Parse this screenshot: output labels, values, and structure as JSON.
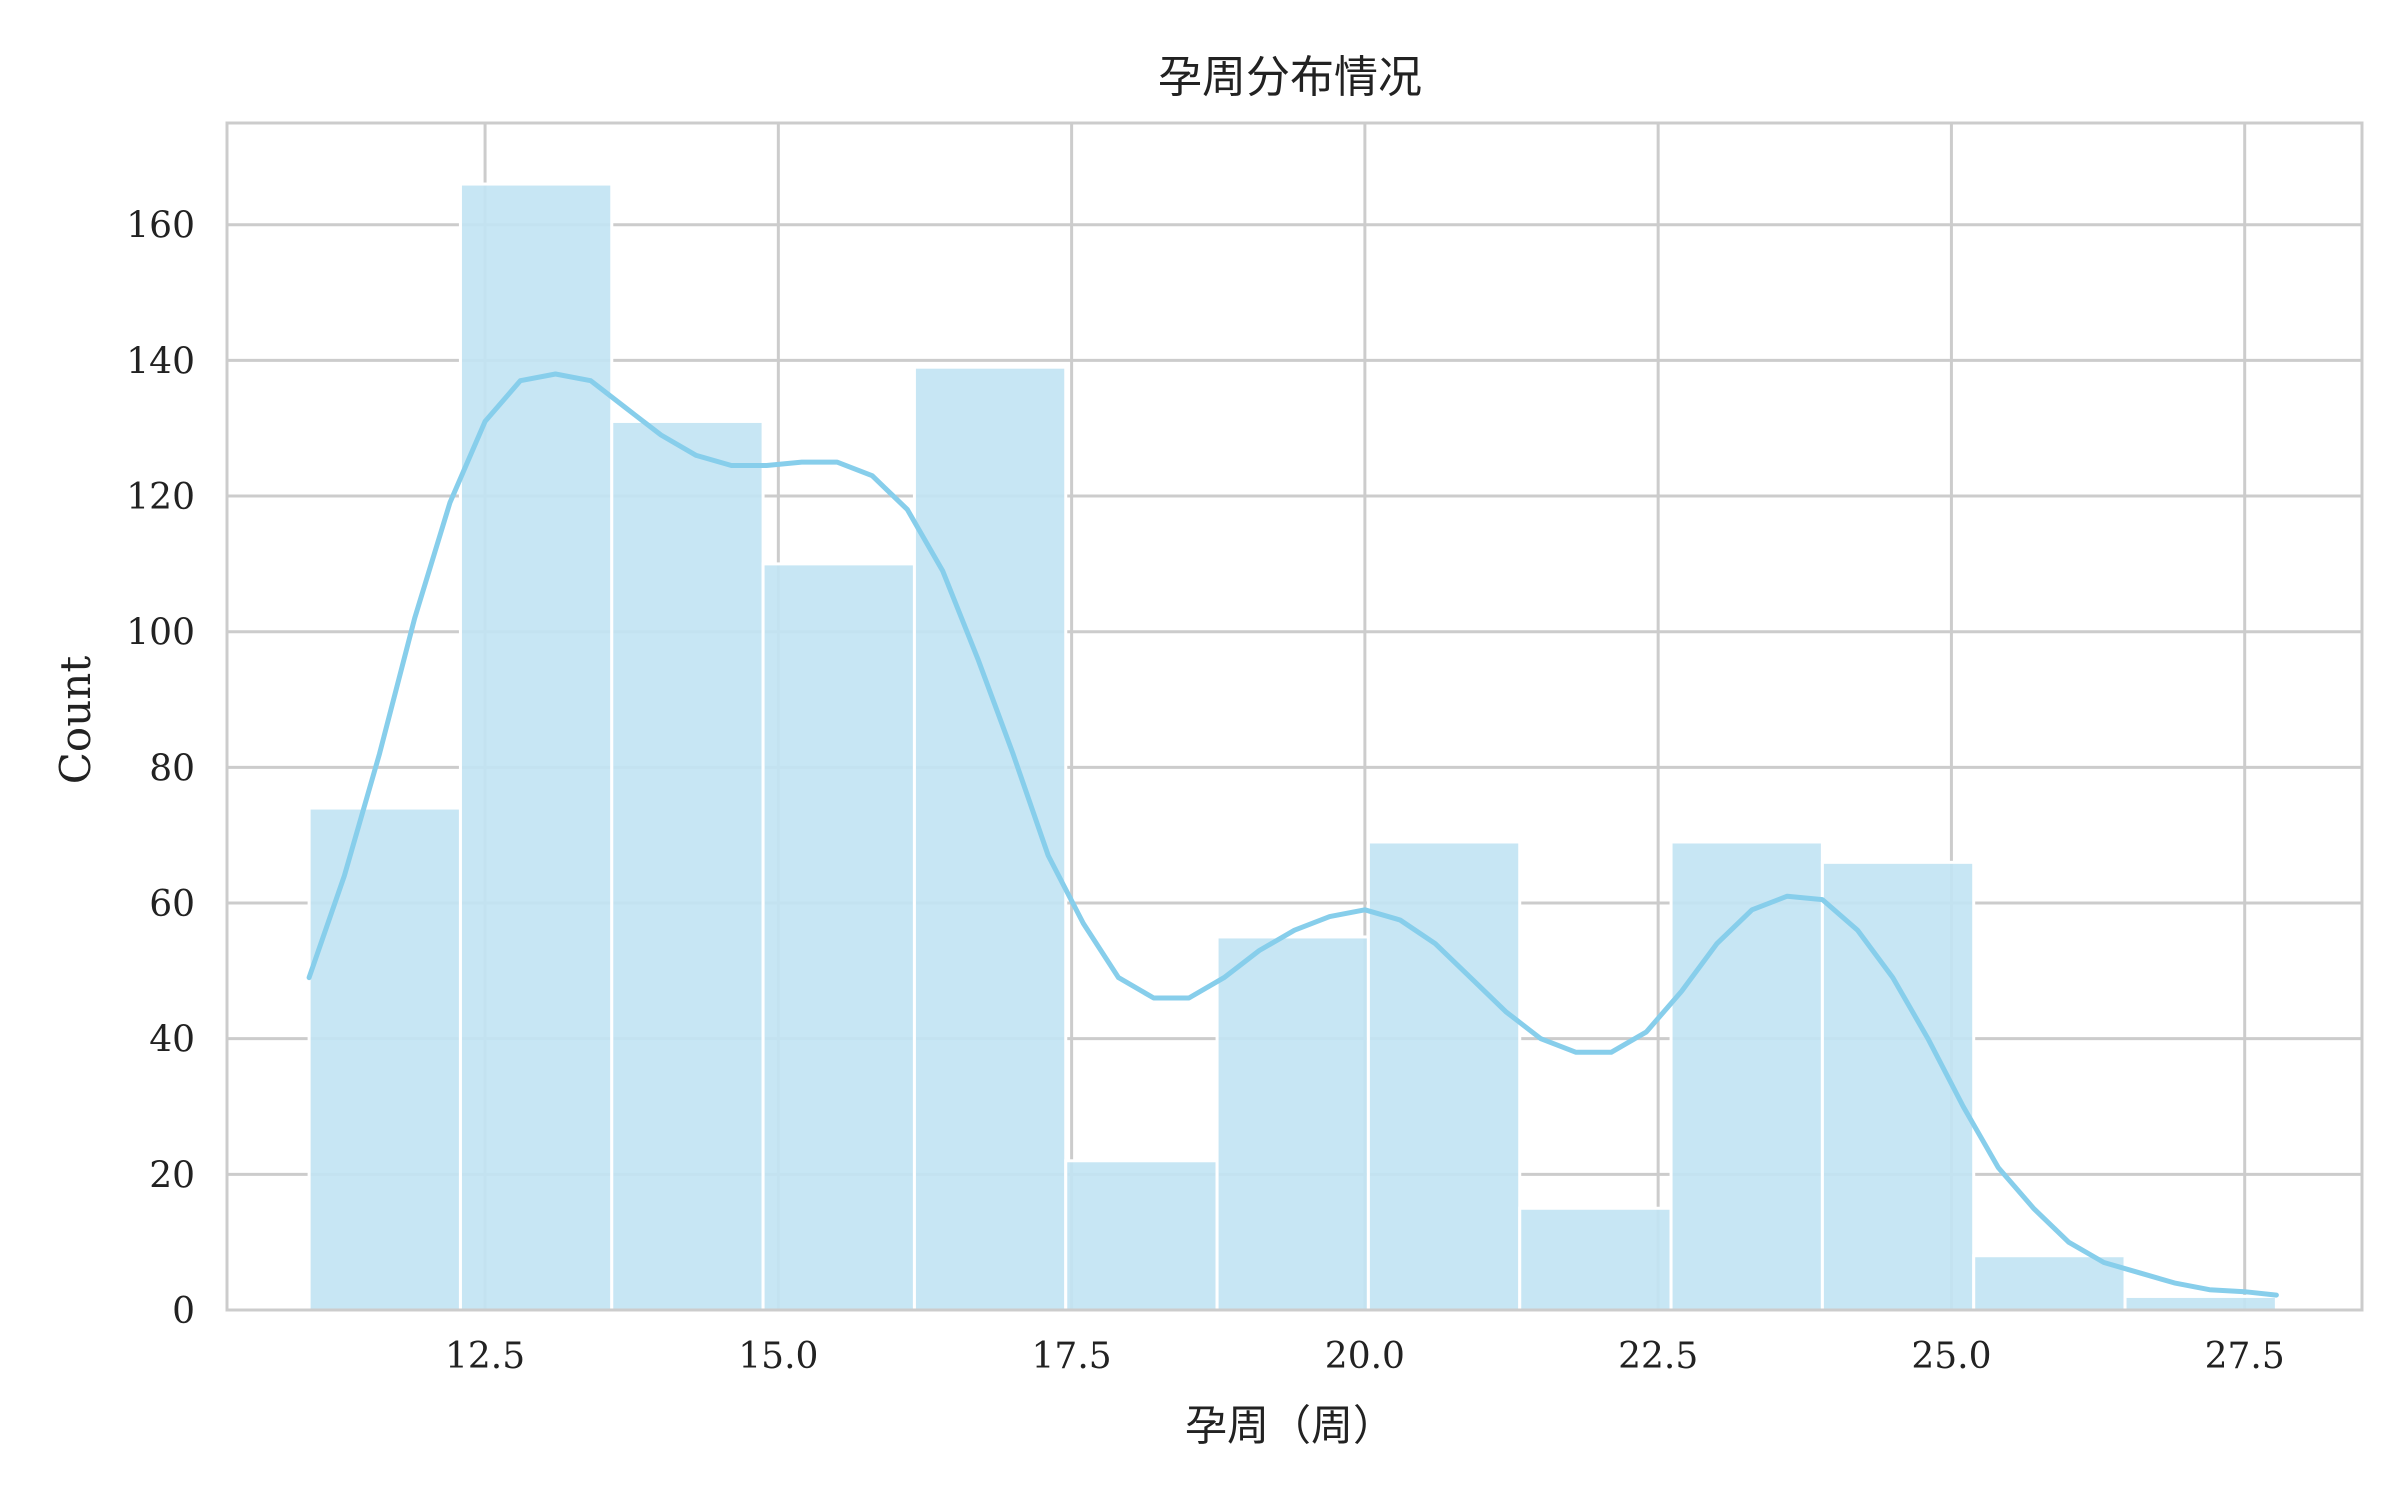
{
  "chart_data": {
    "type": "bar",
    "subtype": "histogram-with-kde",
    "title": "孕周分布情况",
    "xlabel": "孕周（周）",
    "ylabel": "Count",
    "xlim": [
      10.3,
      28.5
    ],
    "ylim": [
      0,
      175
    ],
    "x_ticks": [
      "12.5",
      "15.0",
      "17.5",
      "20.0",
      "22.5",
      "25.0",
      "27.5"
    ],
    "y_ticks": [
      "0",
      "20",
      "40",
      "60",
      "80",
      "100",
      "120",
      "140",
      "160"
    ],
    "grid": true,
    "bins": [
      {
        "x0": 11.0,
        "x1": 12.29,
        "count": 74
      },
      {
        "x0": 12.29,
        "x1": 13.58,
        "count": 166
      },
      {
        "x0": 13.58,
        "x1": 14.87,
        "count": 131
      },
      {
        "x0": 14.87,
        "x1": 16.16,
        "count": 110
      },
      {
        "x0": 16.16,
        "x1": 17.45,
        "count": 139
      },
      {
        "x0": 17.45,
        "x1": 18.74,
        "count": 22
      },
      {
        "x0": 18.74,
        "x1": 20.03,
        "count": 55
      },
      {
        "x0": 20.03,
        "x1": 21.32,
        "count": 69
      },
      {
        "x0": 21.32,
        "x1": 22.61,
        "count": 15
      },
      {
        "x0": 22.61,
        "x1": 23.9,
        "count": 69
      },
      {
        "x0": 23.9,
        "x1": 25.19,
        "count": 66
      },
      {
        "x0": 25.19,
        "x1": 26.48,
        "count": 8
      },
      {
        "x0": 26.48,
        "x1": 27.77,
        "count": 2
      }
    ],
    "kde": {
      "x": [
        11.0,
        11.3,
        11.6,
        11.9,
        12.2,
        12.5,
        12.8,
        13.1,
        13.4,
        13.7,
        14.0,
        14.3,
        14.6,
        14.9,
        15.2,
        15.5,
        15.8,
        16.1,
        16.4,
        16.7,
        17.0,
        17.3,
        17.6,
        17.9,
        18.2,
        18.5,
        18.8,
        19.1,
        19.4,
        19.7,
        20.0,
        20.3,
        20.6,
        20.9,
        21.2,
        21.5,
        21.8,
        22.1,
        22.4,
        22.7,
        23.0,
        23.3,
        23.6,
        23.9,
        24.2,
        24.5,
        24.8,
        25.1,
        25.4,
        25.7,
        26.0,
        26.3,
        26.6,
        26.9,
        27.2,
        27.5,
        27.77
      ],
      "y": [
        49,
        64,
        82,
        102,
        119,
        131,
        137,
        138,
        137,
        133,
        129,
        126,
        124.5,
        124.5,
        125,
        125,
        123,
        118,
        109,
        96,
        82,
        67,
        57,
        49,
        46,
        46,
        49,
        53,
        56,
        58,
        59,
        57.5,
        54,
        49,
        44,
        40,
        38,
        38,
        41,
        47,
        54,
        59,
        61,
        60.5,
        56,
        49,
        40,
        30,
        21,
        15,
        10,
        7,
        5.5,
        4,
        3,
        2.7,
        2.2
      ]
    },
    "colors": {
      "bar_fill": "#c2e4f3",
      "bar_edge": "#ffffff",
      "kde_line": "#87ceeb",
      "grid": "#cccccc",
      "axes_frame": "#cccccc",
      "text": "#222222"
    }
  }
}
